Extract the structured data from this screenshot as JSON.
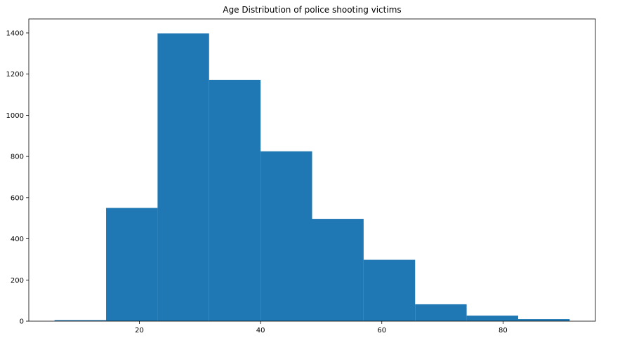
{
  "chart_data": {
    "type": "bar",
    "title": "Age Distribution of police shooting victims",
    "xlabel": "",
    "ylabel": "",
    "bins": [
      {
        "start": 6.0,
        "end": 14.5,
        "count": 5
      },
      {
        "start": 14.5,
        "end": 23.0,
        "count": 550
      },
      {
        "start": 23.0,
        "end": 31.5,
        "count": 1398
      },
      {
        "start": 31.5,
        "end": 40.0,
        "count": 1172
      },
      {
        "start": 40.0,
        "end": 48.5,
        "count": 825
      },
      {
        "start": 48.5,
        "end": 57.0,
        "count": 497
      },
      {
        "start": 57.0,
        "end": 65.5,
        "count": 298
      },
      {
        "start": 65.5,
        "end": 74.0,
        "count": 82
      },
      {
        "start": 74.0,
        "end": 82.5,
        "count": 27
      },
      {
        "start": 82.5,
        "end": 91.0,
        "count": 10
      }
    ],
    "xlim": [
      1.75,
      95.25
    ],
    "ylim": [
      0,
      1468
    ],
    "xticks": [
      20,
      40,
      60,
      80
    ],
    "yticks": [
      0,
      200,
      400,
      600,
      800,
      1000,
      1200,
      1400
    ],
    "bar_color": "#1f77b4",
    "grid": false,
    "legend": "none"
  }
}
